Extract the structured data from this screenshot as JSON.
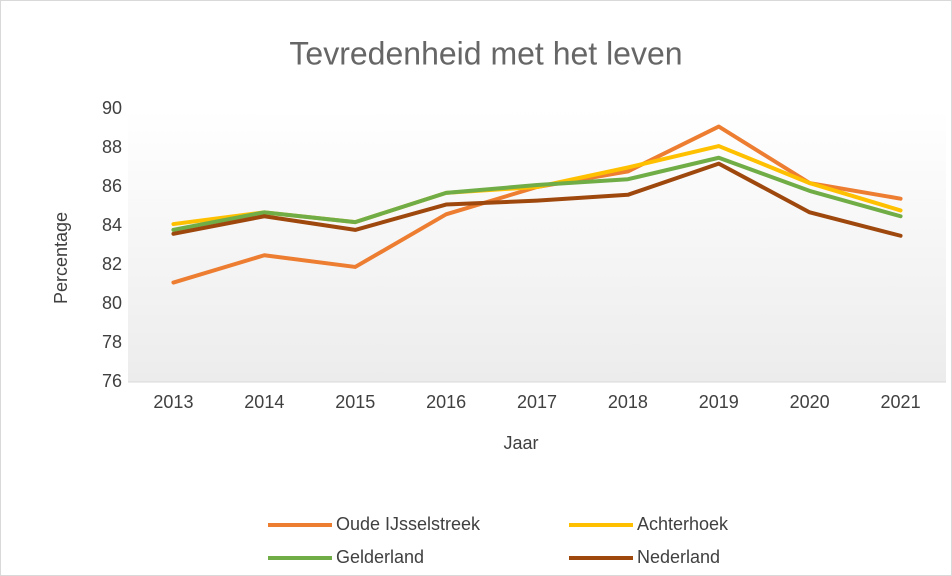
{
  "chart_data": {
    "type": "line",
    "title": "Tevredenheid met het leven",
    "x_label": "Jaar",
    "y_label": "Percentage",
    "categories": [
      "2013",
      "2014",
      "2015",
      "2016",
      "2017",
      "2018",
      "2019",
      "2020",
      "2021"
    ],
    "series": [
      {
        "name": "Oude IJsselstreek",
        "color": "#ed7d31",
        "values": [
          81.1,
          82.5,
          81.9,
          84.6,
          86.0,
          86.8,
          89.1,
          86.2,
          85.4
        ]
      },
      {
        "name": "Achterhoek",
        "color": "#ffc000",
        "values": [
          84.1,
          84.7,
          84.2,
          85.7,
          86.0,
          87.0,
          88.1,
          86.2,
          84.8
        ]
      },
      {
        "name": "Gelderland",
        "color": "#70ad47",
        "values": [
          83.8,
          84.7,
          84.2,
          85.7,
          86.1,
          86.4,
          87.5,
          85.8,
          84.5
        ]
      },
      {
        "name": "Nederland",
        "color": "#9e480e",
        "values": [
          83.6,
          84.5,
          83.8,
          85.1,
          85.3,
          85.6,
          87.2,
          84.7,
          83.5
        ]
      }
    ],
    "ylim": [
      76,
      90
    ],
    "yticks": [
      76,
      78,
      80,
      82,
      84,
      86,
      88,
      90
    ],
    "grid": false,
    "legend": "bottom"
  }
}
